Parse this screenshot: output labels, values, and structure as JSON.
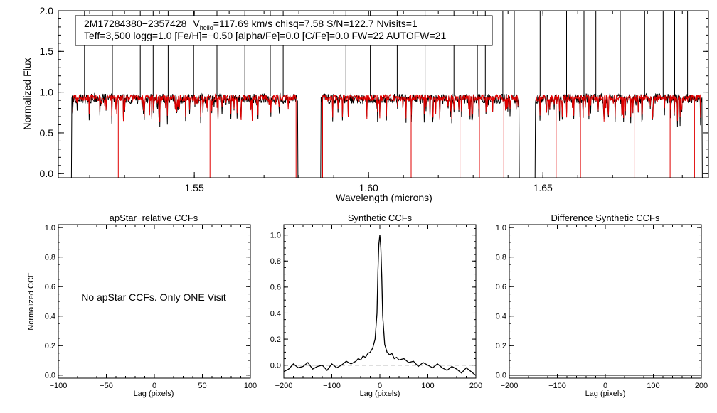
{
  "colors": {
    "observed": "#000000",
    "model": "#e00000",
    "ref": "#7a7a7a"
  },
  "chart_data": [
    {
      "type": "line",
      "id": "spectrum",
      "title": "",
      "xlabel": "Wavelength (microns)",
      "ylabel": "Normalized Flux",
      "xlim": [
        1.511,
        1.6975
      ],
      "ylim": [
        -0.05,
        2.0
      ],
      "xticks": [
        1.55,
        1.6,
        1.65
      ],
      "xtick_labels": [
        "1.55",
        "1.60",
        "1.65"
      ],
      "yticks": [
        0.0,
        0.5,
        1.0,
        1.5,
        2.0
      ],
      "ytick_labels": [
        "0.0",
        "0.5",
        "1.0",
        "1.5",
        "2.0"
      ],
      "segments": [
        [
          1.5145,
          1.58
        ],
        [
          1.586,
          1.6435
        ],
        [
          1.6475,
          1.696
        ]
      ],
      "series": [
        {
          "name": "observed",
          "baseline": 0.92
        },
        {
          "name": "model",
          "baseline": 0.93
        }
      ],
      "annotation": {
        "star_id": "2M17284380−2357428",
        "v_prefix": "V",
        "v_sub": "helio",
        "v_rest": "=117.69 km/s  chisq=7.58  S/N=122.7  Nvisits=1",
        "line2": "Teff=3,500 logg=1.0 [Fe/H]=−0.50 [alpha/Fe]=0.0 [C/Fe]=0.0 FW=22 AUTOFW=21"
      }
    },
    {
      "type": "line",
      "id": "apstar",
      "title": "apStar−relative CCFs",
      "xlabel": "Lag (pixels)",
      "ylabel": "Normalized CCF",
      "xlim": [
        -100,
        100
      ],
      "ylim": [
        -0.02,
        1.02
      ],
      "xticks": [
        -100,
        -50,
        0,
        50,
        100
      ],
      "xtick_labels": [
        "−100",
        "−50",
        "0",
        "50",
        "100"
      ],
      "yticks": [
        0.0,
        0.2,
        0.4,
        0.6,
        0.8,
        1.0
      ],
      "ytick_labels": [
        "0.0",
        "0.2",
        "0.4",
        "0.6",
        "0.8",
        "1.0"
      ],
      "message": "No apStar CCFs.  Only ONE Visit",
      "series": []
    },
    {
      "type": "line",
      "id": "synthetic",
      "title": "Synthetic CCFs",
      "xlabel": "Lag (pixels)",
      "ylabel": "",
      "xlim": [
        -200,
        200
      ],
      "ylim": [
        -0.1,
        1.08
      ],
      "xticks": [
        -200,
        -100,
        0,
        100,
        200
      ],
      "xtick_labels": [
        "−200",
        "−100",
        "0",
        "100",
        "200"
      ],
      "yticks": [
        0.0,
        0.2,
        0.4,
        0.6,
        0.8,
        1.0
      ],
      "ytick_labels": [
        "0.0",
        "0.2",
        "0.4",
        "0.6",
        "0.8",
        "1.0"
      ],
      "ref_line": 0.0,
      "series": [
        {
          "name": "synthetic CCF",
          "x": [
            -200,
            -190,
            -180,
            -170,
            -160,
            -150,
            -140,
            -130,
            -120,
            -110,
            -100,
            -90,
            -80,
            -70,
            -60,
            -50,
            -45,
            -40,
            -35,
            -30,
            -25,
            -20,
            -15,
            -10,
            -6,
            -4,
            -2,
            0,
            2,
            4,
            6,
            10,
            15,
            20,
            25,
            30,
            35,
            40,
            50,
            60,
            70,
            80,
            90,
            100,
            110,
            120,
            130,
            140,
            150,
            160,
            170,
            180,
            190,
            200
          ],
          "y": [
            -0.05,
            -0.03,
            0.01,
            -0.02,
            -0.01,
            0.02,
            -0.03,
            -0.01,
            0.0,
            -0.04,
            0.01,
            -0.02,
            0.0,
            0.03,
            0.01,
            0.03,
            0.05,
            0.04,
            0.07,
            0.06,
            0.09,
            0.1,
            0.13,
            0.2,
            0.4,
            0.72,
            0.93,
            1.0,
            0.9,
            0.68,
            0.38,
            0.16,
            0.1,
            0.08,
            0.09,
            0.05,
            0.06,
            0.04,
            0.05,
            0.02,
            0.03,
            -0.01,
            0.02,
            0.0,
            -0.02,
            0.01,
            -0.02,
            -0.04,
            -0.01,
            -0.03,
            -0.06,
            -0.02,
            -0.05,
            -0.08
          ]
        }
      ]
    },
    {
      "type": "line",
      "id": "difference",
      "title": "Difference Synthetic CCFs",
      "xlabel": "Lag (pixels)",
      "ylabel": "",
      "xlim": [
        -200,
        200
      ],
      "ylim": [
        -0.02,
        1.02
      ],
      "xticks": [
        -200,
        -100,
        0,
        100,
        200
      ],
      "xtick_labels": [
        "−200",
        "−100",
        "0",
        "100",
        "200"
      ],
      "yticks": [
        0.0,
        0.2,
        0.4,
        0.6,
        0.8,
        1.0
      ],
      "ytick_labels": [
        "0.0",
        "0.2",
        "0.4",
        "0.6",
        "0.8",
        "1.0"
      ],
      "series": [
        {
          "name": "difference",
          "x": [
            -200,
            200
          ],
          "y": [
            0.0,
            0.0
          ]
        }
      ]
    }
  ]
}
